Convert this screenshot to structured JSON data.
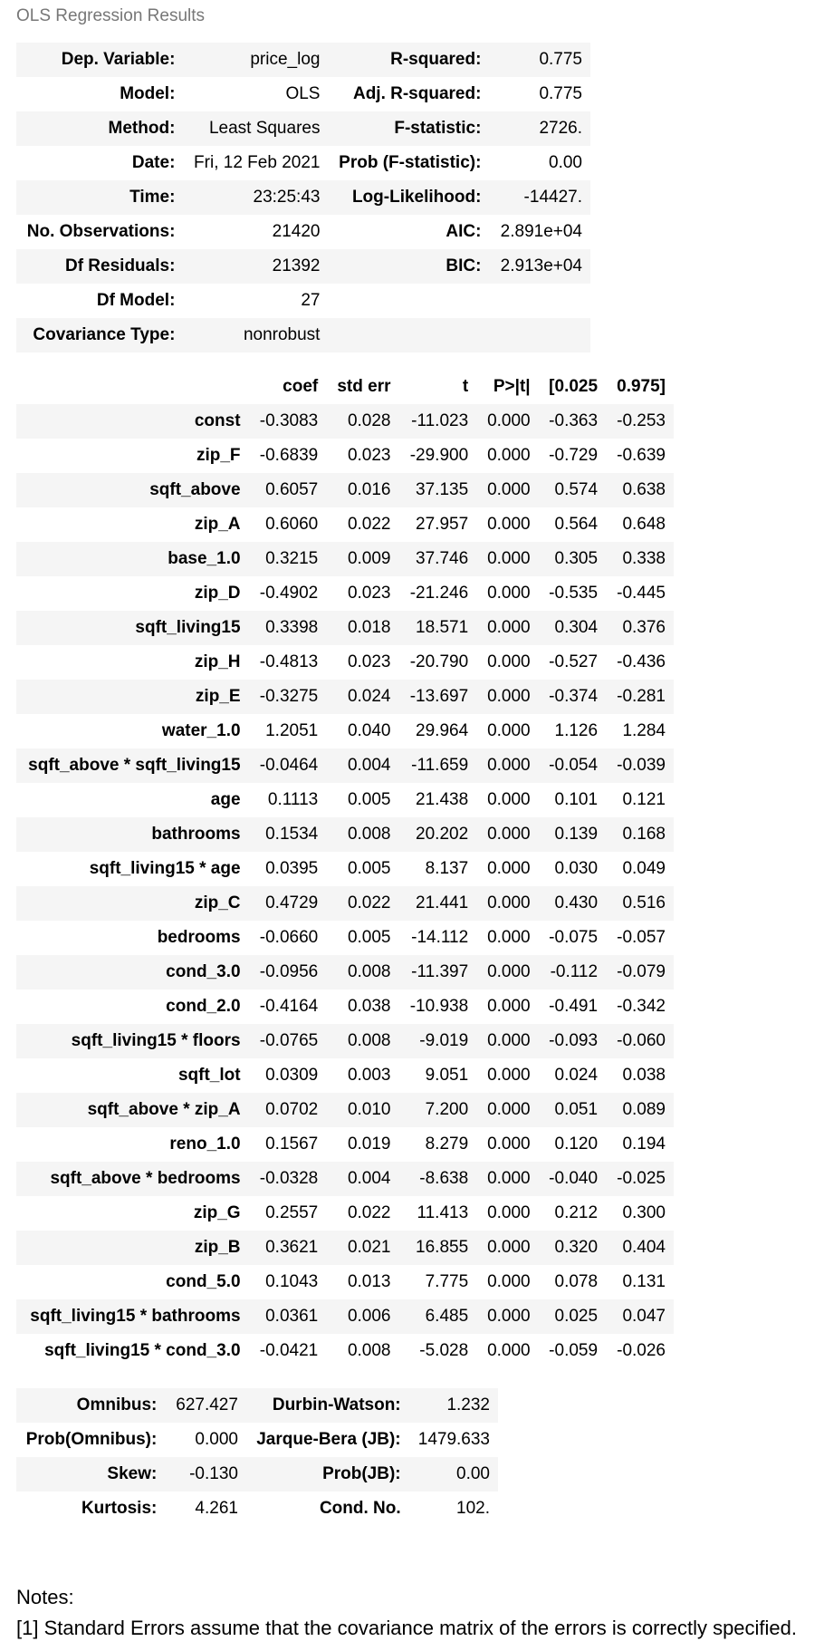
{
  "caption": "OLS Regression Results",
  "summary": {
    "rows": [
      {
        "l1": "Dep. Variable:",
        "v1": "price_log",
        "l2": "R-squared:",
        "v2": "0.775"
      },
      {
        "l1": "Model:",
        "v1": "OLS",
        "l2": "Adj. R-squared:",
        "v2": "0.775"
      },
      {
        "l1": "Method:",
        "v1": "Least Squares",
        "l2": "F-statistic:",
        "v2": "2726."
      },
      {
        "l1": "Date:",
        "v1": "Fri, 12 Feb 2021",
        "l2": "Prob (F-statistic):",
        "v2": "0.00"
      },
      {
        "l1": "Time:",
        "v1": "23:25:43",
        "l2": "Log-Likelihood:",
        "v2": "-14427."
      },
      {
        "l1": "No. Observations:",
        "v1": "21420",
        "l2": "AIC:",
        "v2": "2.891e+04"
      },
      {
        "l1": "Df Residuals:",
        "v1": "21392",
        "l2": "BIC:",
        "v2": "2.913e+04"
      },
      {
        "l1": "Df Model:",
        "v1": "27",
        "l2": "",
        "v2": ""
      },
      {
        "l1": "Covariance Type:",
        "v1": "nonrobust",
        "l2": "",
        "v2": ""
      }
    ]
  },
  "coefficients": {
    "headers": [
      "",
      "coef",
      "std err",
      "t",
      "P>|t|",
      "[0.025",
      "0.975]"
    ],
    "rows": [
      [
        "const",
        "-0.3083",
        "0.028",
        "-11.023",
        "0.000",
        "-0.363",
        "-0.253"
      ],
      [
        "zip_F",
        "-0.6839",
        "0.023",
        "-29.900",
        "0.000",
        "-0.729",
        "-0.639"
      ],
      [
        "sqft_above",
        "0.6057",
        "0.016",
        "37.135",
        "0.000",
        "0.574",
        "0.638"
      ],
      [
        "zip_A",
        "0.6060",
        "0.022",
        "27.957",
        "0.000",
        "0.564",
        "0.648"
      ],
      [
        "base_1.0",
        "0.3215",
        "0.009",
        "37.746",
        "0.000",
        "0.305",
        "0.338"
      ],
      [
        "zip_D",
        "-0.4902",
        "0.023",
        "-21.246",
        "0.000",
        "-0.535",
        "-0.445"
      ],
      [
        "sqft_living15",
        "0.3398",
        "0.018",
        "18.571",
        "0.000",
        "0.304",
        "0.376"
      ],
      [
        "zip_H",
        "-0.4813",
        "0.023",
        "-20.790",
        "0.000",
        "-0.527",
        "-0.436"
      ],
      [
        "zip_E",
        "-0.3275",
        "0.024",
        "-13.697",
        "0.000",
        "-0.374",
        "-0.281"
      ],
      [
        "water_1.0",
        "1.2051",
        "0.040",
        "29.964",
        "0.000",
        "1.126",
        "1.284"
      ],
      [
        "sqft_above * sqft_living15",
        "-0.0464",
        "0.004",
        "-11.659",
        "0.000",
        "-0.054",
        "-0.039"
      ],
      [
        "age",
        "0.1113",
        "0.005",
        "21.438",
        "0.000",
        "0.101",
        "0.121"
      ],
      [
        "bathrooms",
        "0.1534",
        "0.008",
        "20.202",
        "0.000",
        "0.139",
        "0.168"
      ],
      [
        "sqft_living15 * age",
        "0.0395",
        "0.005",
        "8.137",
        "0.000",
        "0.030",
        "0.049"
      ],
      [
        "zip_C",
        "0.4729",
        "0.022",
        "21.441",
        "0.000",
        "0.430",
        "0.516"
      ],
      [
        "bedrooms",
        "-0.0660",
        "0.005",
        "-14.112",
        "0.000",
        "-0.075",
        "-0.057"
      ],
      [
        "cond_3.0",
        "-0.0956",
        "0.008",
        "-11.397",
        "0.000",
        "-0.112",
        "-0.079"
      ],
      [
        "cond_2.0",
        "-0.4164",
        "0.038",
        "-10.938",
        "0.000",
        "-0.491",
        "-0.342"
      ],
      [
        "sqft_living15 * floors",
        "-0.0765",
        "0.008",
        "-9.019",
        "0.000",
        "-0.093",
        "-0.060"
      ],
      [
        "sqft_lot",
        "0.0309",
        "0.003",
        "9.051",
        "0.000",
        "0.024",
        "0.038"
      ],
      [
        "sqft_above * zip_A",
        "0.0702",
        "0.010",
        "7.200",
        "0.000",
        "0.051",
        "0.089"
      ],
      [
        "reno_1.0",
        "0.1567",
        "0.019",
        "8.279",
        "0.000",
        "0.120",
        "0.194"
      ],
      [
        "sqft_above * bedrooms",
        "-0.0328",
        "0.004",
        "-8.638",
        "0.000",
        "-0.040",
        "-0.025"
      ],
      [
        "zip_G",
        "0.2557",
        "0.022",
        "11.413",
        "0.000",
        "0.212",
        "0.300"
      ],
      [
        "zip_B",
        "0.3621",
        "0.021",
        "16.855",
        "0.000",
        "0.320",
        "0.404"
      ],
      [
        "cond_5.0",
        "0.1043",
        "0.013",
        "7.775",
        "0.000",
        "0.078",
        "0.131"
      ],
      [
        "sqft_living15 * bathrooms",
        "0.0361",
        "0.006",
        "6.485",
        "0.000",
        "0.025",
        "0.047"
      ],
      [
        "sqft_living15 * cond_3.0",
        "-0.0421",
        "0.008",
        "-5.028",
        "0.000",
        "-0.059",
        "-0.026"
      ]
    ]
  },
  "diagnostics": {
    "rows": [
      {
        "l1": "Omnibus:",
        "v1": "627.427",
        "l2": "Durbin-Watson:",
        "v2": "1.232"
      },
      {
        "l1": "Prob(Omnibus):",
        "v1": "0.000",
        "l2": "Jarque-Bera (JB):",
        "v2": "1479.633"
      },
      {
        "l1": "Skew:",
        "v1": "-0.130",
        "l2": "Prob(JB):",
        "v2": "0.00"
      },
      {
        "l1": "Kurtosis:",
        "v1": "4.261",
        "l2": "Cond. No.",
        "v2": "102."
      }
    ]
  },
  "notes": {
    "title": "Notes:",
    "line": "[1] Standard Errors assume that the covariance matrix of the errors is correctly specified."
  }
}
